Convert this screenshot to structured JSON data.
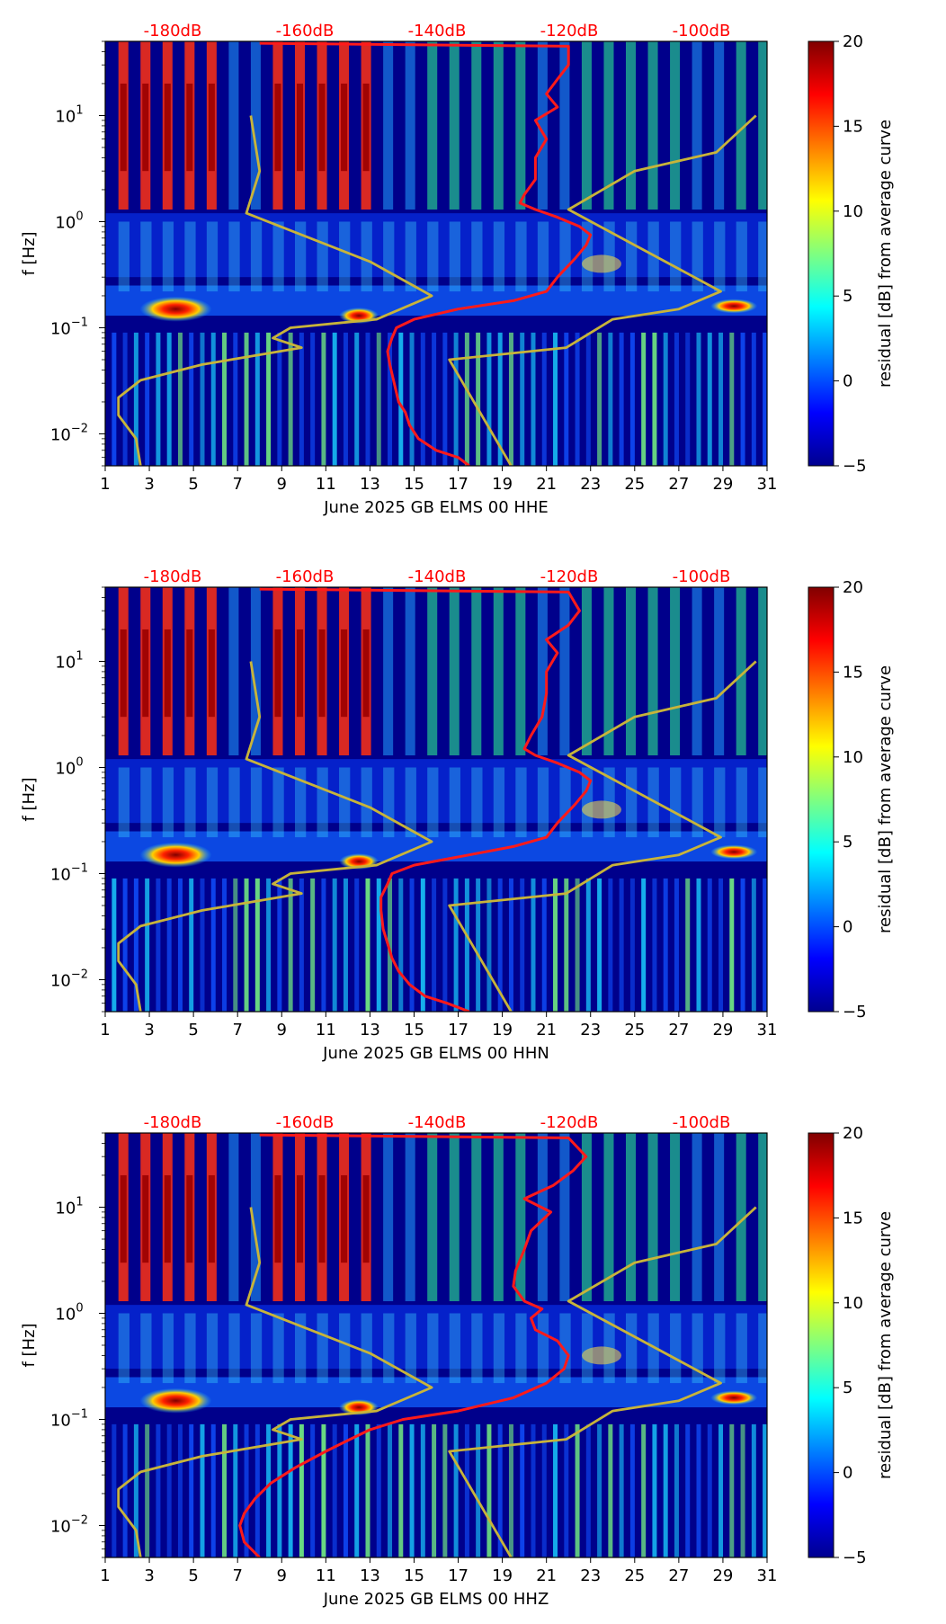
{
  "figure": {
    "colors": {
      "db_label": "#ff0000",
      "psd_curve": "#ff1a1a",
      "noise_model": "#c8b43a",
      "text": "#000000",
      "background_spectrogram": "#00008b"
    }
  },
  "chart_data": [
    {
      "type": "heatmap",
      "title": "",
      "xlabel": "June 2025 GB ELMS 00 HHE",
      "ylabel": "f [Hz]",
      "xlim": [
        1,
        31
      ],
      "x_ticks": [
        "1",
        "3",
        "5",
        "7",
        "9",
        "11",
        "13",
        "15",
        "17",
        "19",
        "21",
        "23",
        "25",
        "27",
        "29",
        "31"
      ],
      "y_scale": "log",
      "ylim": [
        0.005,
        50
      ],
      "y_ticks": [
        {
          "value": 0.01,
          "base": "10",
          "exp": "−2"
        },
        {
          "value": 0.1,
          "base": "10",
          "exp": "−1"
        },
        {
          "value": 1,
          "base": "10",
          "exp": "0"
        },
        {
          "value": 10,
          "base": "10",
          "exp": "1"
        }
      ],
      "db_axis_labels": [
        "-180dB",
        "-160dB",
        "-140dB",
        "-120dB",
        "-100dB"
      ],
      "colorbar": {
        "label": "residual [dB] from average curve",
        "range": [
          -5,
          20
        ],
        "ticks": [
          "20",
          "15",
          "10",
          "5",
          "0",
          "−5"
        ]
      },
      "series": [
        {
          "name": "average PSD curve (dB scale)",
          "color": "#ff1a1a",
          "points": [
            [
              17.5,
              0.005
            ],
            [
              17.0,
              0.006
            ],
            [
              16.0,
              0.007
            ],
            [
              15.2,
              0.009
            ],
            [
              14.8,
              0.012
            ],
            [
              14.6,
              0.016
            ],
            [
              14.3,
              0.02
            ],
            [
              14.1,
              0.03
            ],
            [
              13.9,
              0.045
            ],
            [
              13.8,
              0.06
            ],
            [
              14.0,
              0.08
            ],
            [
              14.2,
              0.1
            ],
            [
              15.0,
              0.12
            ],
            [
              17.0,
              0.15
            ],
            [
              19.5,
              0.18
            ],
            [
              21.0,
              0.22
            ],
            [
              21.5,
              0.3
            ],
            [
              22.3,
              0.45
            ],
            [
              22.8,
              0.6
            ],
            [
              23.0,
              0.75
            ],
            [
              22.5,
              0.9
            ],
            [
              21.5,
              1.1
            ],
            [
              20.5,
              1.3
            ],
            [
              19.8,
              1.5
            ],
            [
              20.0,
              1.8
            ],
            [
              20.5,
              2.5
            ],
            [
              20.5,
              4
            ],
            [
              21.0,
              6
            ],
            [
              20.5,
              9
            ],
            [
              21.5,
              12
            ],
            [
              21.0,
              16
            ],
            [
              21.5,
              22
            ],
            [
              22.0,
              30
            ],
            [
              22.0,
              45
            ],
            [
              8.0,
              48
            ]
          ]
        },
        {
          "name": "low noise model",
          "color": "#c8b43a",
          "points": [
            [
              2.6,
              0.005
            ],
            [
              2.4,
              0.009
            ],
            [
              1.6,
              0.015
            ],
            [
              1.6,
              0.022
            ],
            [
              2.6,
              0.032
            ],
            [
              5.4,
              0.045
            ],
            [
              9.9,
              0.065
            ],
            [
              8.6,
              0.08
            ],
            [
              9.4,
              0.1
            ],
            [
              13.3,
              0.12
            ],
            [
              15.8,
              0.2
            ],
            [
              13.0,
              0.42
            ],
            [
              7.4,
              1.2
            ],
            [
              8.0,
              3
            ],
            [
              7.6,
              10
            ]
          ]
        },
        {
          "name": "high noise model",
          "color": "#c8b43a",
          "points": [
            [
              19.4,
              0.005
            ],
            [
              16.6,
              0.05
            ],
            [
              21.9,
              0.065
            ],
            [
              24.0,
              0.12
            ],
            [
              27.0,
              0.15
            ],
            [
              28.9,
              0.22
            ],
            [
              22.0,
              1.3
            ],
            [
              25.0,
              3
            ],
            [
              28.7,
              4.5
            ],
            [
              30.5,
              10
            ]
          ]
        }
      ]
    },
    {
      "type": "heatmap",
      "title": "",
      "xlabel": "June 2025 GB ELMS 00 HHN",
      "ylabel": "f [Hz]",
      "xlim": [
        1,
        31
      ],
      "x_ticks": [
        "1",
        "3",
        "5",
        "7",
        "9",
        "11",
        "13",
        "15",
        "17",
        "19",
        "21",
        "23",
        "25",
        "27",
        "29",
        "31"
      ],
      "y_scale": "log",
      "ylim": [
        0.005,
        50
      ],
      "y_ticks": [
        {
          "value": 0.01,
          "base": "10",
          "exp": "−2"
        },
        {
          "value": 0.1,
          "base": "10",
          "exp": "−1"
        },
        {
          "value": 1,
          "base": "10",
          "exp": "0"
        },
        {
          "value": 10,
          "base": "10",
          "exp": "1"
        }
      ],
      "db_axis_labels": [
        "-180dB",
        "-160dB",
        "-140dB",
        "-120dB",
        "-100dB"
      ],
      "colorbar": {
        "label": "residual [dB] from average curve",
        "range": [
          -5,
          20
        ],
        "ticks": [
          "20",
          "15",
          "10",
          "5",
          "0",
          "−5"
        ]
      },
      "series": [
        {
          "name": "average PSD curve (dB scale)",
          "color": "#ff1a1a",
          "points": [
            [
              17.5,
              0.005
            ],
            [
              16.5,
              0.006
            ],
            [
              15.5,
              0.007
            ],
            [
              14.8,
              0.009
            ],
            [
              14.3,
              0.012
            ],
            [
              14.0,
              0.016
            ],
            [
              13.8,
              0.022
            ],
            [
              13.6,
              0.03
            ],
            [
              13.5,
              0.045
            ],
            [
              13.5,
              0.06
            ],
            [
              13.8,
              0.08
            ],
            [
              14.0,
              0.1
            ],
            [
              15.0,
              0.12
            ],
            [
              17.5,
              0.15
            ],
            [
              19.5,
              0.18
            ],
            [
              21.0,
              0.22
            ],
            [
              21.5,
              0.3
            ],
            [
              22.3,
              0.45
            ],
            [
              22.8,
              0.6
            ],
            [
              23.0,
              0.75
            ],
            [
              22.5,
              0.9
            ],
            [
              21.5,
              1.1
            ],
            [
              20.5,
              1.3
            ],
            [
              20.0,
              1.5
            ],
            [
              20.3,
              2
            ],
            [
              20.8,
              3
            ],
            [
              21.0,
              5
            ],
            [
              21.0,
              8
            ],
            [
              21.5,
              12
            ],
            [
              21.0,
              16
            ],
            [
              22.0,
              22
            ],
            [
              22.5,
              30
            ],
            [
              22.0,
              45
            ],
            [
              8.0,
              48
            ]
          ]
        },
        {
          "name": "low noise model",
          "color": "#c8b43a",
          "points": [
            [
              2.6,
              0.005
            ],
            [
              2.4,
              0.009
            ],
            [
              1.6,
              0.015
            ],
            [
              1.6,
              0.022
            ],
            [
              2.6,
              0.032
            ],
            [
              5.4,
              0.045
            ],
            [
              9.9,
              0.065
            ],
            [
              8.6,
              0.08
            ],
            [
              9.4,
              0.1
            ],
            [
              13.3,
              0.12
            ],
            [
              15.8,
              0.2
            ],
            [
              13.0,
              0.42
            ],
            [
              7.4,
              1.2
            ],
            [
              8.0,
              3
            ],
            [
              7.6,
              10
            ]
          ]
        },
        {
          "name": "high noise model",
          "color": "#c8b43a",
          "points": [
            [
              19.4,
              0.005
            ],
            [
              16.6,
              0.05
            ],
            [
              21.9,
              0.065
            ],
            [
              24.0,
              0.12
            ],
            [
              27.0,
              0.15
            ],
            [
              28.9,
              0.22
            ],
            [
              22.0,
              1.3
            ],
            [
              25.0,
              3
            ],
            [
              28.7,
              4.5
            ],
            [
              30.5,
              10
            ]
          ]
        }
      ]
    },
    {
      "type": "heatmap",
      "title": "",
      "xlabel": "June 2025 GB ELMS 00 HHZ",
      "ylabel": "f [Hz]",
      "xlim": [
        1,
        31
      ],
      "x_ticks": [
        "1",
        "3",
        "5",
        "7",
        "9",
        "11",
        "13",
        "15",
        "17",
        "19",
        "21",
        "23",
        "25",
        "27",
        "29",
        "31"
      ],
      "y_scale": "log",
      "ylim": [
        0.005,
        50
      ],
      "y_ticks": [
        {
          "value": 0.01,
          "base": "10",
          "exp": "−2"
        },
        {
          "value": 0.1,
          "base": "10",
          "exp": "−1"
        },
        {
          "value": 1,
          "base": "10",
          "exp": "0"
        },
        {
          "value": 10,
          "base": "10",
          "exp": "1"
        }
      ],
      "db_axis_labels": [
        "-180dB",
        "-160dB",
        "-140dB",
        "-120dB",
        "-100dB"
      ],
      "colorbar": {
        "label": "residual [dB] from average curve",
        "range": [
          -5,
          20
        ],
        "ticks": [
          "20",
          "15",
          "10",
          "5",
          "0",
          "−5"
        ]
      },
      "series": [
        {
          "name": "average PSD curve (dB scale)",
          "color": "#ff1a1a",
          "points": [
            [
              8.0,
              0.005
            ],
            [
              7.3,
              0.007
            ],
            [
              7.1,
              0.01
            ],
            [
              7.3,
              0.013
            ],
            [
              7.8,
              0.018
            ],
            [
              8.5,
              0.025
            ],
            [
              9.6,
              0.035
            ],
            [
              11.0,
              0.05
            ],
            [
              12.1,
              0.065
            ],
            [
              13.0,
              0.08
            ],
            [
              14.5,
              0.1
            ],
            [
              17.0,
              0.12
            ],
            [
              19.5,
              0.16
            ],
            [
              21.0,
              0.22
            ],
            [
              21.8,
              0.3
            ],
            [
              22.0,
              0.4
            ],
            [
              21.5,
              0.55
            ],
            [
              20.5,
              0.7
            ],
            [
              20.3,
              0.9
            ],
            [
              20.8,
              1.1
            ],
            [
              20.0,
              1.3
            ],
            [
              19.5,
              1.8
            ],
            [
              19.6,
              2.5
            ],
            [
              20.0,
              4
            ],
            [
              20.3,
              6
            ],
            [
              21.2,
              9
            ],
            [
              20.0,
              12
            ],
            [
              21.3,
              16
            ],
            [
              22.2,
              22
            ],
            [
              22.8,
              30
            ],
            [
              22.0,
              45
            ],
            [
              8.0,
              48
            ]
          ]
        },
        {
          "name": "low noise model",
          "color": "#c8b43a",
          "points": [
            [
              2.6,
              0.005
            ],
            [
              2.4,
              0.009
            ],
            [
              1.6,
              0.015
            ],
            [
              1.6,
              0.022
            ],
            [
              2.6,
              0.032
            ],
            [
              5.4,
              0.045
            ],
            [
              9.9,
              0.065
            ],
            [
              8.6,
              0.08
            ],
            [
              9.4,
              0.1
            ],
            [
              13.3,
              0.12
            ],
            [
              15.8,
              0.2
            ],
            [
              13.0,
              0.42
            ],
            [
              7.4,
              1.2
            ],
            [
              8.0,
              3
            ],
            [
              7.6,
              10
            ]
          ]
        },
        {
          "name": "high noise model",
          "color": "#c8b43a",
          "points": [
            [
              19.4,
              0.005
            ],
            [
              16.6,
              0.05
            ],
            [
              21.9,
              0.065
            ],
            [
              24.0,
              0.12
            ],
            [
              27.0,
              0.15
            ],
            [
              28.9,
              0.22
            ],
            [
              22.0,
              1.3
            ],
            [
              25.0,
              3
            ],
            [
              28.7,
              4.5
            ],
            [
              30.5,
              10
            ]
          ]
        }
      ]
    }
  ]
}
